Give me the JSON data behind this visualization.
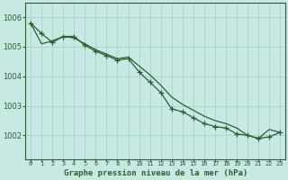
{
  "title": "Graphe pression niveau de la mer (hPa)",
  "background_color": "#c8e8e4",
  "grid_color": "#a0ccc8",
  "line_color": "#2d5e2d",
  "x_labels": [
    "0",
    "1",
    "2",
    "3",
    "4",
    "5",
    "6",
    "7",
    "8",
    "9",
    "10",
    "11",
    "12",
    "13",
    "14",
    "15",
    "16",
    "17",
    "18",
    "19",
    "20",
    "21",
    "22",
    "23"
  ],
  "ylim": [
    1001.2,
    1006.5
  ],
  "yticks": [
    1002,
    1003,
    1004,
    1005,
    1006
  ],
  "series_markers": [
    1005.8,
    1005.45,
    1005.15,
    1005.35,
    1005.35,
    1005.05,
    1004.85,
    1004.7,
    1004.55,
    1004.6,
    1004.15,
    1003.8,
    1003.45,
    1002.9,
    1002.8,
    1002.6,
    1002.4,
    1002.3,
    1002.25,
    1002.05,
    1002.0,
    1001.9,
    1001.95,
    1002.1
  ],
  "series_smooth": [
    1005.8,
    1005.1,
    1005.2,
    1005.35,
    1005.3,
    1005.1,
    1004.9,
    1004.75,
    1004.6,
    1004.65,
    1004.35,
    1004.05,
    1003.7,
    1003.3,
    1003.05,
    1002.85,
    1002.65,
    1002.5,
    1002.4,
    1002.25,
    1002.0,
    1001.9,
    1002.2,
    1002.1
  ]
}
